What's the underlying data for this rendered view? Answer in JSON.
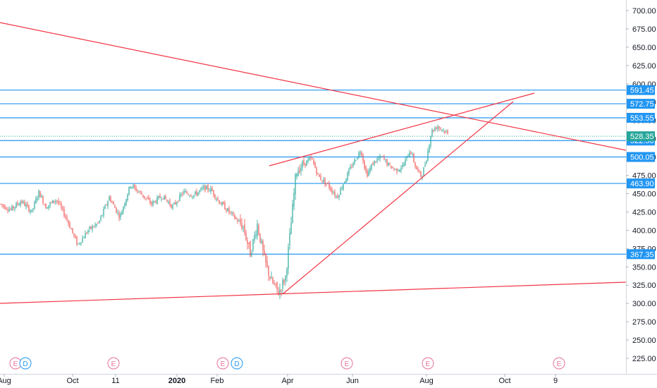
{
  "chart_data": {
    "type": "candlestick",
    "title": "",
    "y_axis": {
      "position": "right",
      "ylim": [
        205,
        712
      ],
      "ticks": [
        "700.00",
        "675.00",
        "650.00",
        "625.00",
        "600.00",
        "575.00",
        "550.00",
        "525.00",
        "500.00",
        "475.00",
        "450.00",
        "425.00",
        "400.00",
        "375.00",
        "350.00",
        "325.00",
        "300.00",
        "275.00",
        "250.00",
        "225.00"
      ]
    },
    "x_axis": {
      "ticks": [
        {
          "label": "Aug",
          "bold": false
        },
        {
          "label": "Oct",
          "bold": false
        },
        {
          "label": "11",
          "bold": false
        },
        {
          "label": "2020",
          "bold": true
        },
        {
          "label": "Feb",
          "bold": false
        },
        {
          "label": "Apr",
          "bold": false
        },
        {
          "label": "Jun",
          "bold": false
        },
        {
          "label": "Aug",
          "bold": false
        },
        {
          "label": "Oct",
          "bold": false
        },
        {
          "label": "9",
          "bold": false
        }
      ]
    },
    "price_levels": [
      591.45,
      572.75,
      553.55,
      522.5,
      500.05,
      463.9,
      367.35
    ],
    "level_color": "#2196f3",
    "last_price": 528.35,
    "last_price_color": "#26a69a",
    "trendline_color": "#f23645",
    "trendlines": [
      {
        "name": "long-descending-resistance",
        "from": [
          "Aug 2019",
          682
        ],
        "to": [
          "Oct 2020",
          511
        ]
      },
      {
        "name": "rising-wedge-upper",
        "from": [
          "Mar 2020",
          489
        ],
        "to": [
          "Sep 2020",
          590
        ]
      },
      {
        "name": "rising-wedge-lower",
        "from": [
          "Mar 2020",
          313
        ],
        "to": [
          "Sep 2020",
          575
        ]
      },
      {
        "name": "long-ascending-support",
        "from": [
          "Aug 2019",
          300
        ],
        "to": [
          "Nov 2020",
          328
        ]
      }
    ],
    "series": [
      {
        "name": "price",
        "anchors": [
          [
            0,
            436
          ],
          [
            15,
            428
          ],
          [
            30,
            440
          ],
          [
            45,
            425
          ],
          [
            55,
            452
          ],
          [
            65,
            432
          ],
          [
            80,
            442
          ],
          [
            95,
            415
          ],
          [
            110,
            380
          ],
          [
            125,
            400
          ],
          [
            140,
            410
          ],
          [
            155,
            445
          ],
          [
            170,
            418
          ],
          [
            185,
            462
          ],
          [
            200,
            450
          ],
          [
            215,
            436
          ],
          [
            230,
            447
          ],
          [
            245,
            432
          ],
          [
            260,
            452
          ],
          [
            275,
            448
          ],
          [
            290,
            458
          ],
          [
            300,
            455
          ],
          [
            310,
            440
          ],
          [
            320,
            430
          ],
          [
            335,
            415
          ],
          [
            345,
            405
          ],
          [
            355,
            368
          ],
          [
            365,
            408
          ],
          [
            375,
            360
          ],
          [
            385,
            330
          ],
          [
            395,
            315
          ],
          [
            405,
            336
          ],
          [
            412,
            400
          ],
          [
            420,
            480
          ],
          [
            430,
            490
          ],
          [
            442,
            498
          ],
          [
            452,
            473
          ],
          [
            465,
            462
          ],
          [
            478,
            445
          ],
          [
            490,
            470
          ],
          [
            500,
            490
          ],
          [
            512,
            510
          ],
          [
            520,
            475
          ],
          [
            530,
            493
          ],
          [
            542,
            500
          ],
          [
            552,
            488
          ],
          [
            562,
            482
          ],
          [
            572,
            488
          ],
          [
            582,
            510
          ],
          [
            590,
            485
          ],
          [
            598,
            473
          ],
          [
            605,
            498
          ],
          [
            612,
            535
          ],
          [
            620,
            542
          ],
          [
            628,
            538
          ],
          [
            636,
            530
          ]
        ],
        "up_color": "#26a69a",
        "down_color": "#ef5350"
      }
    ],
    "events": [
      {
        "x_near": "Aug 2019",
        "badges": [
          "E",
          "D"
        ]
      },
      {
        "x_near": "11",
        "badges": [
          "E"
        ]
      },
      {
        "x_near": "Feb",
        "badges": [
          "E",
          "D"
        ]
      },
      {
        "x_near": "May",
        "badges": [
          "E"
        ]
      },
      {
        "x_near": "Aug",
        "badges": [
          "E"
        ]
      },
      {
        "x_near": "Oct 2020",
        "badges": [
          "E"
        ]
      }
    ]
  }
}
